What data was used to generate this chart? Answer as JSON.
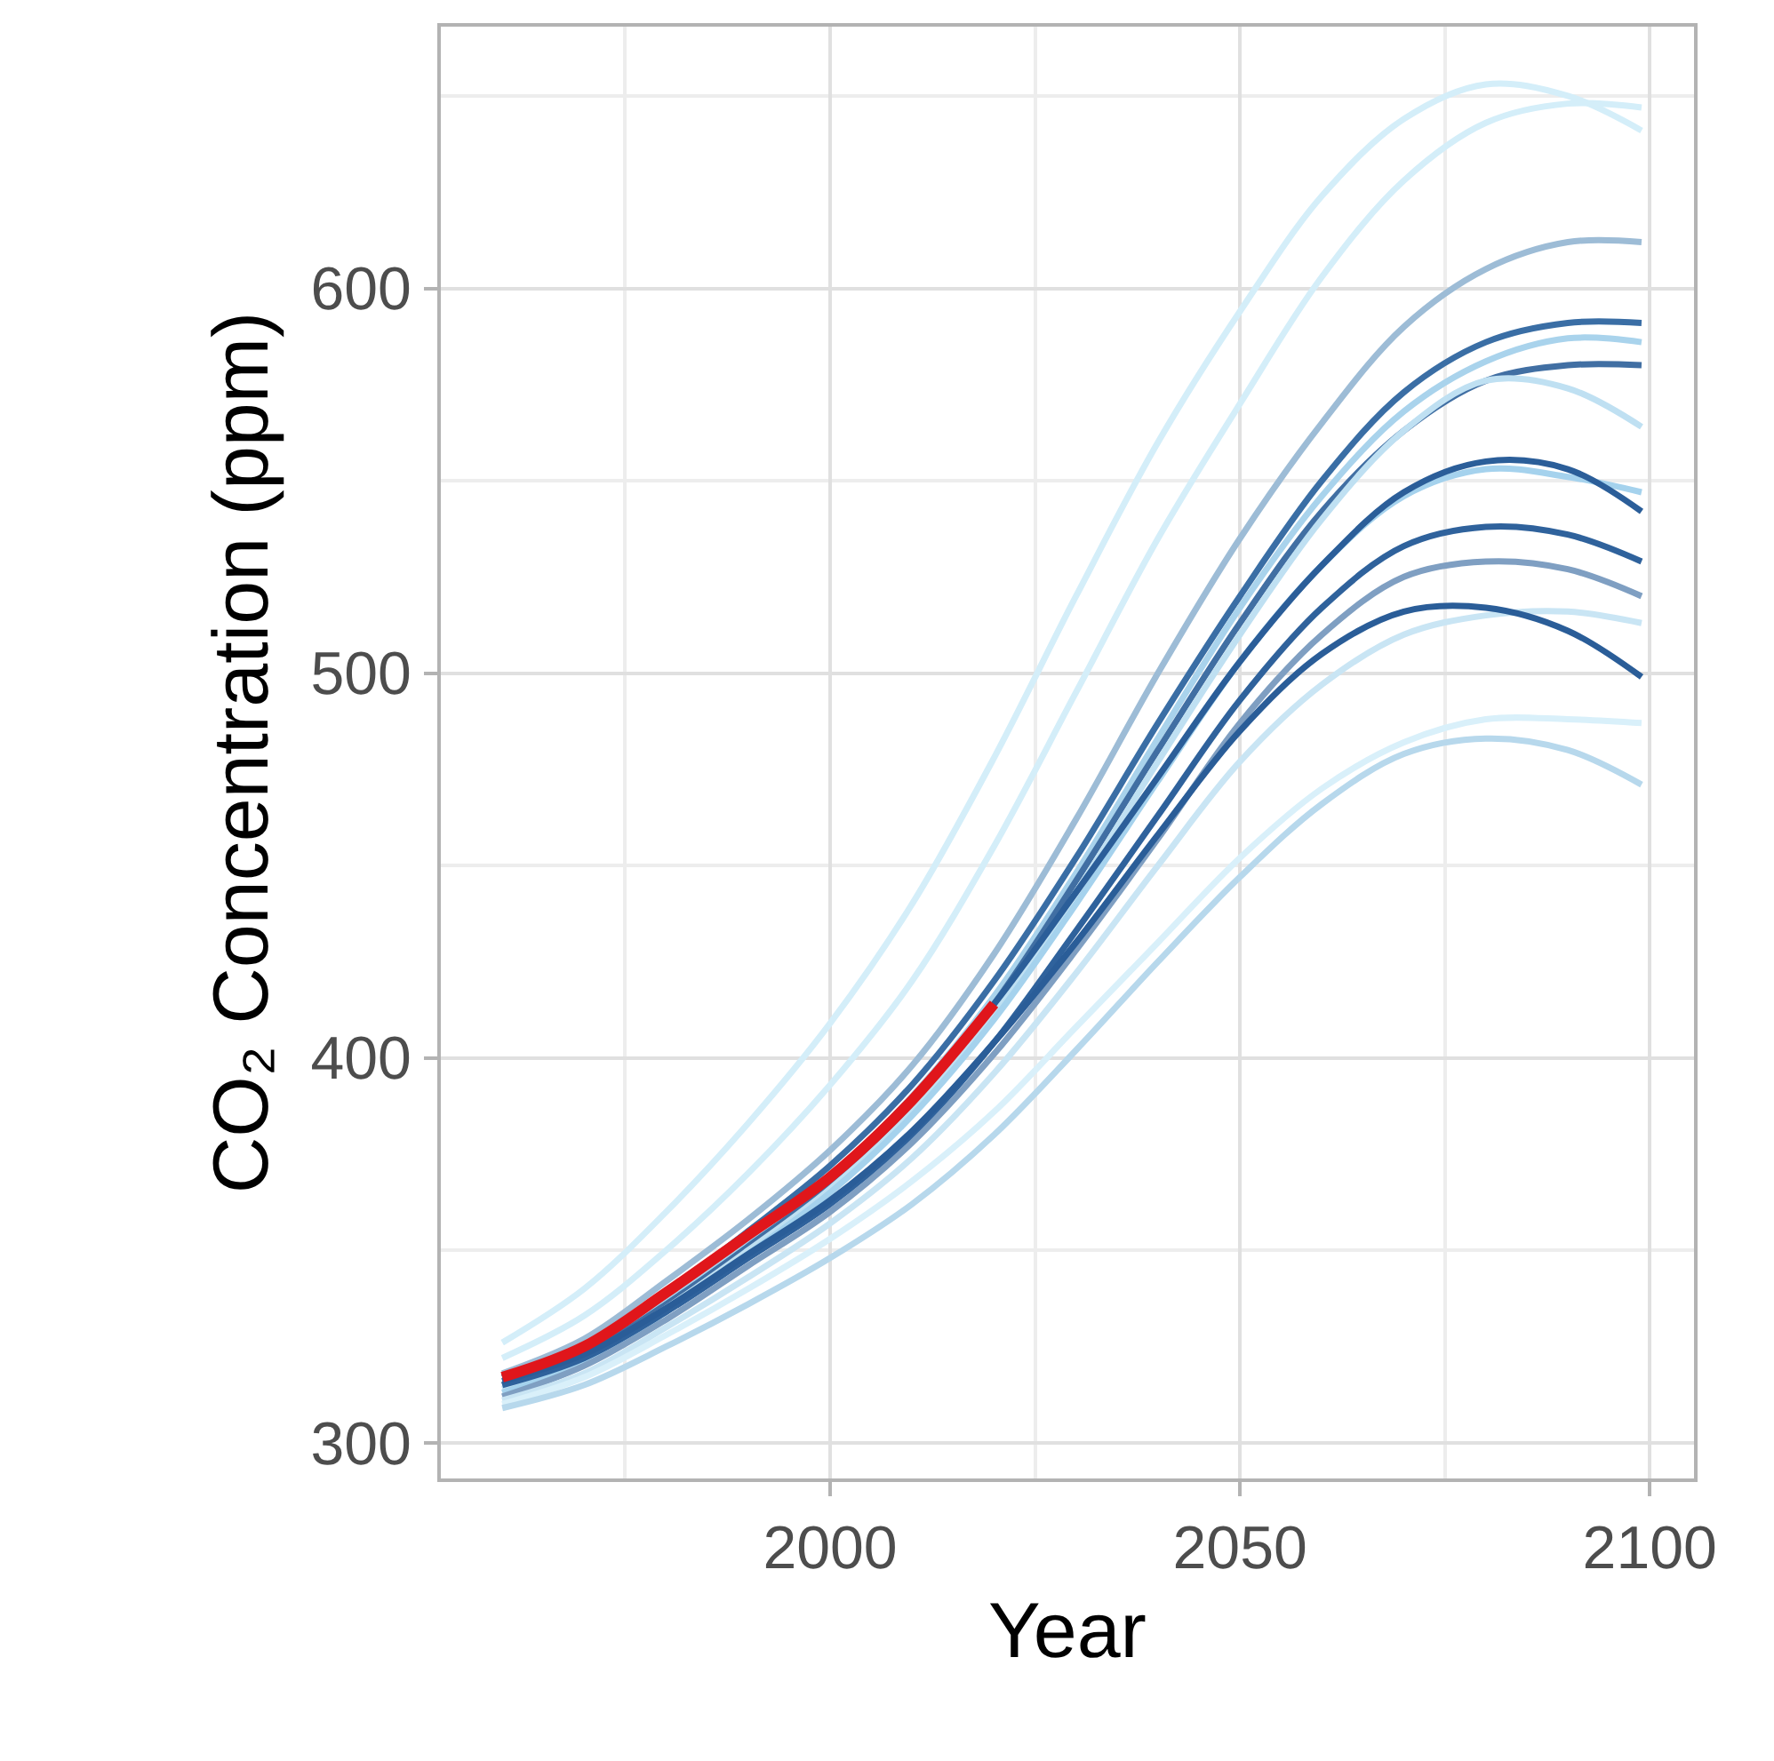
{
  "chart_data": {
    "type": "line",
    "xlabel": "Year",
    "ylabel": "CO₂ Concentration (ppm)",
    "x": [
      1960,
      1970,
      1980,
      1990,
      2000,
      2010,
      2020,
      2030,
      2040,
      2050,
      2060,
      2070,
      2080,
      2090,
      2099
    ],
    "xlim": [
      1952.5,
      2105.4
    ],
    "ylim": [
      290.7,
      668
    ],
    "xticks": [
      2000,
      2050,
      2100
    ],
    "yticks": [
      300,
      400,
      500,
      600
    ],
    "grid": true,
    "marker": "none",
    "line_style": "solid",
    "series": [
      {
        "color": "#d4eef9",
        "values": [
          326,
          340,
          360,
          383,
          409,
          440,
          478,
          520,
          560,
          594,
          624,
          644,
          653,
          650,
          641
        ]
      },
      {
        "color": "#d4eef9",
        "values": [
          322,
          333,
          350,
          370,
          393,
          420,
          455,
          495,
          535,
          570,
          603,
          628,
          643,
          648,
          647
        ]
      },
      {
        "color": "#9dbcd6",
        "values": [
          318,
          327,
          342,
          358,
          376,
          398,
          427,
          462,
          500,
          535,
          565,
          590,
          605,
          612,
          612
        ]
      },
      {
        "color": "#3a6ea5",
        "values": [
          317,
          325,
          339,
          355,
          372,
          393,
          420,
          452,
          487,
          520,
          550,
          573,
          586,
          591,
          591
        ]
      },
      {
        "color": "#a9d3ec",
        "values": [
          316,
          324,
          337,
          352,
          369,
          390,
          416,
          448,
          483,
          517,
          546,
          568,
          581,
          587,
          586
        ]
      },
      {
        "color": "#416fa3",
        "values": [
          315,
          323,
          336,
          351,
          367,
          388,
          414,
          446,
          480,
          513,
          542,
          563,
          576,
          580,
          580
        ]
      },
      {
        "color": "#bfe0f2",
        "values": [
          314,
          322,
          335,
          350,
          366,
          386,
          412,
          443,
          477,
          510,
          540,
          563,
          576,
          574,
          564
        ]
      },
      {
        "color": "#a5d2ed",
        "values": [
          313,
          321,
          334,
          349,
          365,
          385,
          410,
          440,
          472,
          503,
          528,
          546,
          553,
          551,
          547
        ]
      },
      {
        "color": "#2b5e99",
        "values": [
          317,
          325,
          339,
          354,
          369,
          389,
          414,
          443,
          473,
          503,
          528,
          547,
          555,
          553,
          542
        ]
      },
      {
        "color": "#2f629c",
        "values": [
          315,
          322,
          334,
          348,
          362,
          380,
          404,
          433,
          463,
          493,
          517,
          533,
          538,
          536,
          529
        ]
      },
      {
        "color": "#7f9fc2",
        "values": [
          312,
          320,
          332,
          346,
          360,
          378,
          401,
          428,
          457,
          487,
          510,
          525,
          529,
          527,
          520
        ]
      },
      {
        "color": "#c9e5f4",
        "values": [
          311,
          318,
          330,
          343,
          357,
          374,
          396,
          422,
          450,
          477,
          497,
          510,
          515,
          516,
          513
        ]
      },
      {
        "color": "#2a5d98",
        "values": [
          316,
          323,
          335,
          349,
          363,
          381,
          404,
          430,
          458,
          485,
          505,
          516,
          517,
          511,
          499
        ]
      },
      {
        "color": "#d9f0fa",
        "values": [
          310,
          317,
          328,
          340,
          353,
          368,
          386,
          408,
          430,
          452,
          470,
          482,
          488,
          488,
          487
        ]
      },
      {
        "color": "#b7d8ec",
        "values": [
          309,
          315,
          325,
          336,
          348,
          362,
          380,
          402,
          425,
          447,
          466,
          479,
          483,
          480,
          471
        ]
      },
      {
        "color": "#e0161b",
        "x": [
          1960,
          1970,
          1980,
          1990,
          2000,
          2010,
          2020
        ],
        "values": [
          317,
          325,
          339,
          354,
          369,
          389,
          414
        ]
      }
    ]
  }
}
